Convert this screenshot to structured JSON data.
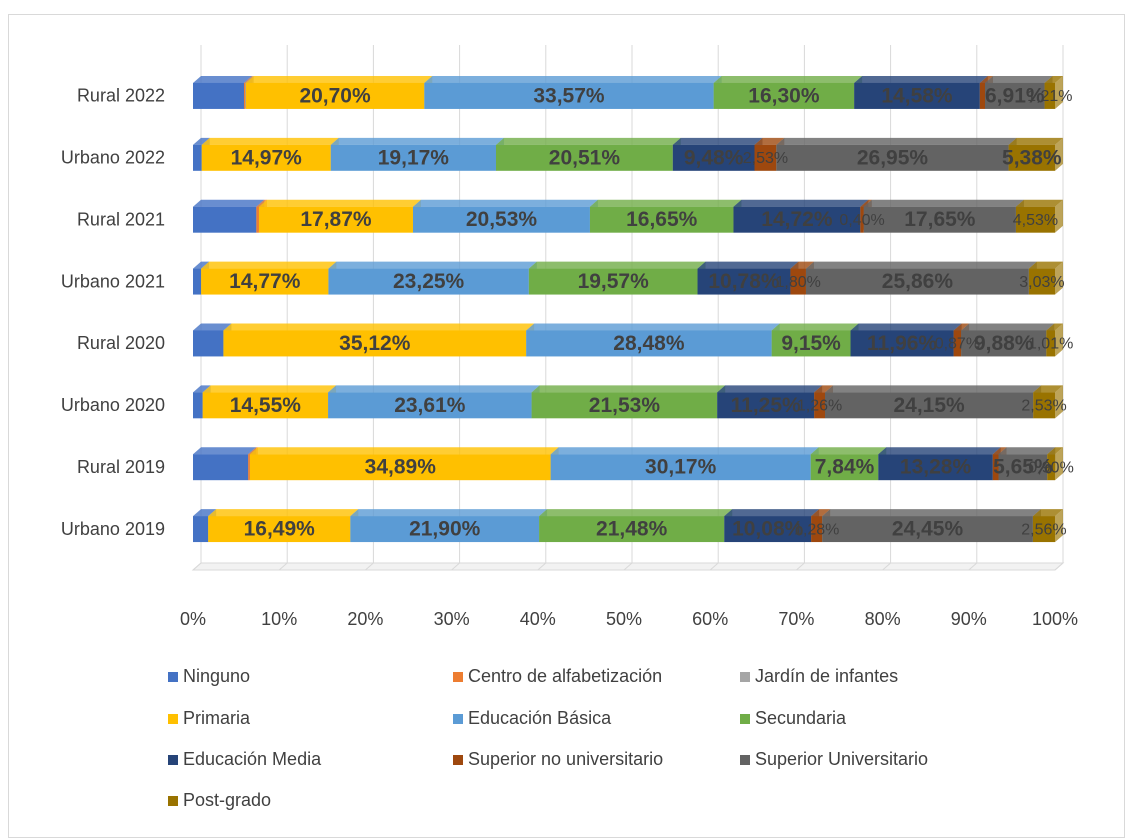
{
  "chart_data": {
    "type": "bar",
    "orientation": "horizontal",
    "stacked": "percent",
    "categories": [
      "Rural 2022",
      "Urbano 2022",
      "Rural 2021",
      "Urbano 2021",
      "Rural 2020",
      "Urbano 2020",
      "Rural 2019",
      "Urbano 2019"
    ],
    "series": [
      {
        "name": "Ninguno",
        "color": "#4472c4",
        "values": [
          5.92,
          1.01,
          7.35,
          0.94,
          3.53,
          1.12,
          6.4,
          1.76
        ],
        "value_labels": [
          null,
          null,
          null,
          null,
          null,
          null,
          null,
          null
        ]
      },
      {
        "name": "Centro de alfabetización",
        "color": "#ed7d31",
        "values": [
          0.14,
          0,
          0.3,
          0,
          0,
          0,
          0.2,
          0
        ],
        "value_labels": [
          null,
          null,
          null,
          null,
          null,
          null,
          null,
          null
        ]
      },
      {
        "name": "Jardín de infantes",
        "color": "#a5a5a5",
        "values": [
          0.07,
          0,
          0,
          0,
          0,
          0,
          0,
          0
        ],
        "value_labels": [
          null,
          null,
          null,
          null,
          null,
          null,
          null,
          null
        ]
      },
      {
        "name": "Primaria",
        "color": "#ffc000",
        "values": [
          20.7,
          14.97,
          17.87,
          14.77,
          35.12,
          14.55,
          34.89,
          16.49
        ],
        "value_labels": [
          "20,70%",
          "14,97%",
          "17,87%",
          "14,77%",
          "35,12%",
          "14,55%",
          "34,89%",
          "16,49%"
        ]
      },
      {
        "name": "Educación Básica",
        "color": "#5b9bd5",
        "values": [
          33.57,
          19.17,
          20.53,
          23.25,
          28.48,
          23.61,
          30.17,
          21.9
        ],
        "value_labels": [
          "33,57%",
          "19,17%",
          "20,53%",
          "23,25%",
          "28,48%",
          "23,61%",
          "30,17%",
          "21,90%"
        ]
      },
      {
        "name": "Secundaria",
        "color": "#70ad47",
        "values": [
          16.3,
          20.51,
          16.65,
          19.57,
          9.15,
          21.53,
          7.84,
          21.48
        ],
        "value_labels": [
          "16,30%",
          "20,51%",
          "16,65%",
          "19,57%",
          "9,15%",
          "21,53%",
          "7,84%",
          "21,48%"
        ]
      },
      {
        "name": "Educación  Media",
        "color": "#264478",
        "values": [
          14.58,
          9.48,
          14.72,
          10.78,
          11.96,
          11.25,
          13.28,
          10.08
        ],
        "value_labels": [
          "14,58%",
          "9,48%",
          "14,72%",
          "10,78%",
          "11,96%",
          "11,25%",
          "13,28%",
          "10,08%"
        ]
      },
      {
        "name": "Superior no universitario",
        "color": "#9e480e",
        "values": [
          0.6,
          2.53,
          0.4,
          1.8,
          0.87,
          1.26,
          0.67,
          1.28
        ],
        "value_labels": [
          null,
          "2,53%",
          "0,40%",
          "1,80%",
          "0,87%",
          "1,26%",
          null,
          "1,28%"
        ]
      },
      {
        "name": "Superior Universitario",
        "color": "#636363",
        "values": [
          6.91,
          26.95,
          17.65,
          25.86,
          9.88,
          24.15,
          5.65,
          24.45
        ],
        "value_labels": [
          "6,91%",
          "26,95%",
          "17,65%",
          "25,86%",
          "9,88%",
          "24,15%",
          "5,65%",
          "24,45%"
        ]
      },
      {
        "name": "Post-grado",
        "color": "#997300",
        "values": [
          1.21,
          5.38,
          4.53,
          3.03,
          1.01,
          2.53,
          0.9,
          2.56
        ],
        "value_labels": [
          "1,21%",
          "5,38%",
          "4,53%",
          "3,03%",
          "1,01%",
          "2,53%",
          "0,90%",
          "2,56%"
        ]
      }
    ],
    "xlim": [
      0,
      100
    ],
    "xticks": [
      {
        "value": 0,
        "label": "0%"
      },
      {
        "value": 10,
        "label": "10%"
      },
      {
        "value": 20,
        "label": "20%"
      },
      {
        "value": 30,
        "label": "30%"
      },
      {
        "value": 40,
        "label": "40%"
      },
      {
        "value": 50,
        "label": "50%"
      },
      {
        "value": 60,
        "label": "60%"
      },
      {
        "value": 70,
        "label": "70%"
      },
      {
        "value": 80,
        "label": "80%"
      },
      {
        "value": 90,
        "label": "90%"
      },
      {
        "value": 100,
        "label": "100%"
      }
    ],
    "grid": true,
    "legend": "bottom"
  }
}
